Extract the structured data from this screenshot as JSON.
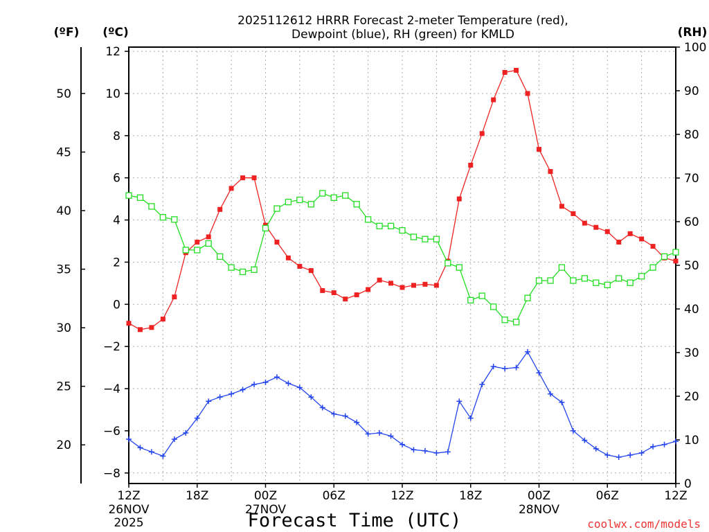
{
  "chart_data": {
    "type": "line",
    "title_line1": "2025112612 HRRR Forecast 2-meter Temperature (red),",
    "title_line2": "Dewpoint (blue), RH (green) for KMLD",
    "unit_f": "(ºF)",
    "unit_c": "(ºC)",
    "unit_rh": "(RH)",
    "xlabel": "Forecast Time (UTC)",
    "watermark": "coolwx.com/models",
    "x_start_hour": 0,
    "x_end_hour": 48,
    "x_ticks": [
      {
        "hour": 0,
        "label": "12Z",
        "sub1": "26NOV",
        "sub2": "2025"
      },
      {
        "hour": 6,
        "label": "18Z",
        "sub1": "",
        "sub2": ""
      },
      {
        "hour": 12,
        "label": "00Z",
        "sub1": "27NOV",
        "sub2": ""
      },
      {
        "hour": 18,
        "label": "06Z",
        "sub1": "",
        "sub2": ""
      },
      {
        "hour": 24,
        "label": "12Z",
        "sub1": "",
        "sub2": ""
      },
      {
        "hour": 30,
        "label": "18Z",
        "sub1": "",
        "sub2": ""
      },
      {
        "hour": 36,
        "label": "00Z",
        "sub1": "28NOV",
        "sub2": ""
      },
      {
        "hour": 42,
        "label": "06Z",
        "sub1": "",
        "sub2": ""
      },
      {
        "hour": 48,
        "label": "12Z",
        "sub1": "",
        "sub2": ""
      }
    ],
    "c_axis": {
      "min": -8.5,
      "max": 12.2,
      "ticks": [
        "12",
        "10",
        "8",
        "6",
        "4",
        "2",
        "0",
        "−2",
        "−4",
        "−6",
        "−8"
      ],
      "tick_values": [
        12,
        10,
        8,
        6,
        4,
        2,
        0,
        -2,
        -4,
        -6,
        -8
      ]
    },
    "f_axis": {
      "ticks": [
        "50",
        "45",
        "40",
        "35",
        "30",
        "25",
        "20"
      ],
      "tick_values": [
        50,
        45,
        40,
        35,
        30,
        25,
        20
      ]
    },
    "rh_axis": {
      "min": 0,
      "max": 100,
      "ticks": [
        "100",
        "90",
        "80",
        "70",
        "60",
        "50",
        "40",
        "30",
        "20",
        "10",
        "0"
      ],
      "tick_values": [
        100,
        90,
        80,
        70,
        60,
        50,
        40,
        30,
        20,
        10,
        0
      ]
    },
    "series": [
      {
        "name": "Temperature",
        "color": "#ee2222",
        "marker": "filled-square",
        "axis": "c",
        "values": [
          -0.9,
          -1.2,
          -1.1,
          -0.7,
          0.35,
          2.45,
          2.95,
          3.2,
          4.5,
          5.5,
          6.0,
          6.0,
          3.75,
          2.95,
          2.2,
          1.8,
          1.6,
          0.65,
          0.55,
          0.25,
          0.45,
          0.7,
          1.15,
          1.0,
          0.8,
          0.9,
          0.95,
          0.9,
          2.05,
          5.0,
          6.6,
          8.1,
          9.7,
          11.0,
          11.1,
          10.0,
          7.35,
          6.3,
          4.65,
          4.3,
          3.85,
          3.65,
          3.45,
          2.95,
          3.35,
          3.1,
          2.75,
          2.2,
          2.05
        ]
      },
      {
        "name": "Dewpoint",
        "color": "#2244ee",
        "marker": "plus",
        "axis": "c",
        "values": [
          -6.4,
          -6.8,
          -7.0,
          -7.2,
          -6.4,
          -6.1,
          -5.4,
          -4.6,
          -4.4,
          -4.25,
          -4.05,
          -3.8,
          -3.7,
          -3.45,
          -3.75,
          -3.95,
          -4.4,
          -4.9,
          -5.2,
          -5.3,
          -5.6,
          -6.15,
          -6.1,
          -6.25,
          -6.65,
          -6.9,
          -6.95,
          -7.05,
          -7.0,
          -4.6,
          -5.4,
          -3.8,
          -2.95,
          -3.05,
          -3.0,
          -2.25,
          -3.25,
          -4.25,
          -4.65,
          -6.0,
          -6.45,
          -6.85,
          -7.15,
          -7.25,
          -7.15,
          -7.05,
          -6.75,
          -6.65,
          -6.5
        ]
      },
      {
        "name": "RH",
        "color": "#22dd22",
        "marker": "open-square",
        "axis": "rh",
        "values": [
          66,
          65.5,
          63.5,
          61,
          60.5,
          53.5,
          53.5,
          55,
          52,
          49.5,
          48.5,
          49,
          58.5,
          63,
          64.5,
          65,
          64,
          66.5,
          65.5,
          66,
          64,
          60.5,
          59,
          59,
          58,
          56.5,
          56,
          56,
          50.5,
          49.5,
          42,
          43,
          40.5,
          37.5,
          37,
          42.5,
          46.5,
          46.5,
          49.5,
          46.5,
          47,
          46,
          45.5,
          47,
          46,
          47.5,
          49.5,
          52,
          53
        ]
      }
    ]
  }
}
